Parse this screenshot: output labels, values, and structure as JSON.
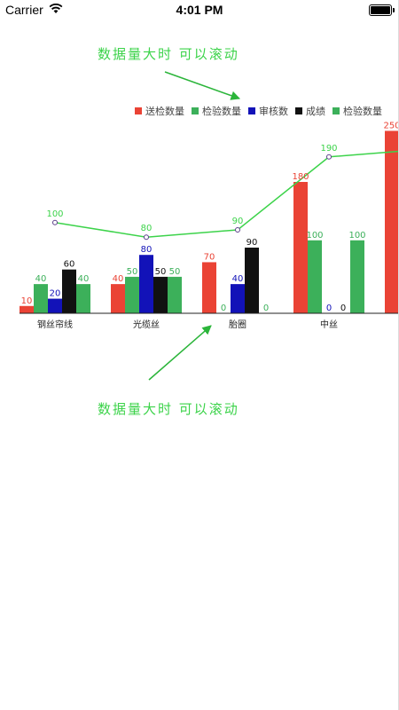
{
  "status_bar": {
    "carrier": "Carrier",
    "time": "4:01 PM"
  },
  "annotations": {
    "top": "数据量大时 可以滚动",
    "bottom": "数据量大时 可以滚动"
  },
  "colors": {
    "red": "#ea4335",
    "green": "#3cb05a",
    "blue": "#1212b8",
    "black": "#111111",
    "line": "#3cd34a",
    "note": "#3cd34a"
  },
  "chart_data": {
    "type": "bar",
    "categories": [
      "钢丝帘线",
      "光缆丝",
      "胎圈",
      "中丝",
      ""
    ],
    "series": [
      {
        "name": "送检数量",
        "type": "bar",
        "color": "#ea4335",
        "values": [
          10,
          40,
          70,
          180,
          250
        ]
      },
      {
        "name": "检验数量",
        "type": "bar",
        "color": "#3cb05a",
        "values": [
          40,
          50,
          0,
          100,
          null
        ]
      },
      {
        "name": "审核数",
        "type": "bar",
        "color": "#1212b8",
        "values": [
          20,
          80,
          40,
          0,
          null
        ]
      },
      {
        "name": "成绩",
        "type": "bar",
        "color": "#111111",
        "values": [
          60,
          50,
          90,
          0,
          null
        ]
      },
      {
        "name": "检验数量",
        "type": "bar",
        "color": "#3cb05a",
        "values": [
          40,
          50,
          0,
          100,
          null
        ]
      }
    ],
    "line_series": {
      "name": "",
      "color": "#3cd34a",
      "values": [
        100,
        80,
        90,
        190,
        200
      ]
    },
    "legend_position": "top-right",
    "title": "",
    "xlabel": "",
    "ylabel": ""
  }
}
